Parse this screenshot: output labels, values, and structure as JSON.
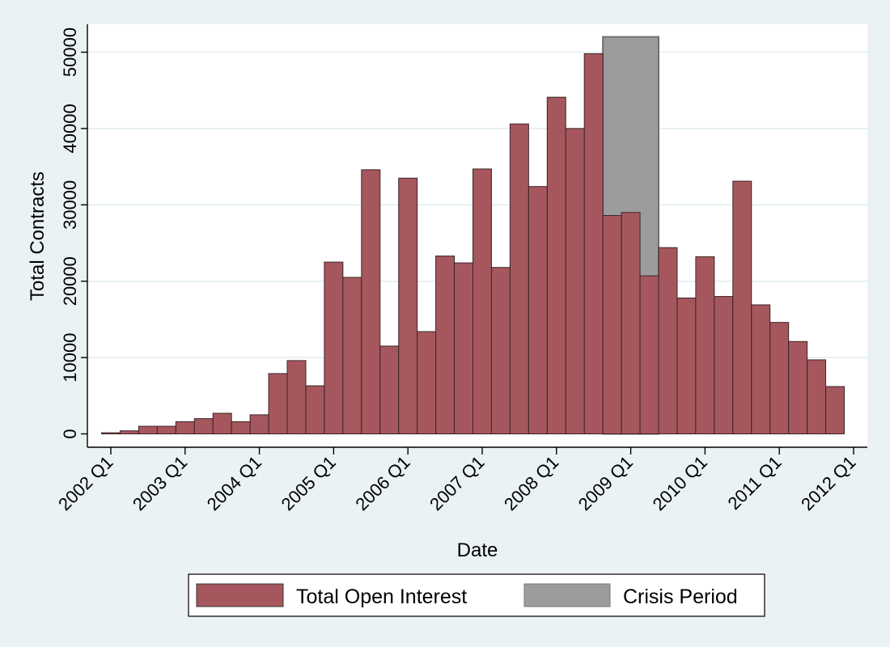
{
  "chart_data": {
    "type": "bar",
    "xlabel": "Date",
    "ylabel": "Total Contracts",
    "ylim": [
      0,
      54000
    ],
    "grid": true,
    "legend_position": "bottom",
    "y_ticks": [
      0,
      10000,
      20000,
      30000,
      40000,
      50000
    ],
    "y_tick_labels": [
      "0",
      "10000",
      "20000",
      "30000",
      "40000",
      "50000"
    ],
    "x_ticks": [
      "2002 Q1",
      "2003 Q1",
      "2004 Q1",
      "2005 Q1",
      "2006 Q1",
      "2007 Q1",
      "2008 Q1",
      "2009 Q1",
      "2010 Q1",
      "2011 Q1",
      "2012 Q1"
    ],
    "categories": [
      "2002 Q1",
      "2002 Q2",
      "2002 Q3",
      "2002 Q4",
      "2003 Q1",
      "2003 Q2",
      "2003 Q3",
      "2003 Q4",
      "2004 Q1",
      "2004 Q2",
      "2004 Q3",
      "2004 Q4",
      "2005 Q1",
      "2005 Q2",
      "2005 Q3",
      "2005 Q4",
      "2006 Q1",
      "2006 Q2",
      "2006 Q3",
      "2006 Q4",
      "2007 Q1",
      "2007 Q2",
      "2007 Q3",
      "2007 Q4",
      "2008 Q1",
      "2008 Q2",
      "2008 Q3",
      "2008 Q4",
      "2009 Q1",
      "2009 Q2",
      "2009 Q3",
      "2009 Q4",
      "2010 Q1",
      "2010 Q2",
      "2010 Q3",
      "2010 Q4",
      "2011 Q1",
      "2011 Q2",
      "2011 Q3",
      "2011 Q4"
    ],
    "series": [
      {
        "name": "Total Open Interest",
        "color": "#a6575e",
        "values": [
          150,
          400,
          1000,
          1000,
          1600,
          2000,
          2700,
          1600,
          2500,
          7900,
          9600,
          6300,
          22500,
          20500,
          34600,
          11500,
          33500,
          13400,
          23300,
          22400,
          34700,
          21800,
          40600,
          32400,
          44100,
          40000,
          49800,
          28600,
          29000,
          20700,
          24400,
          17800,
          23200,
          18000,
          33100,
          16900,
          14600,
          12100,
          9700,
          6200
        ]
      }
    ],
    "crisis_period": {
      "name": "Crisis Period",
      "color": "#9c9c9c",
      "start": "2008 Q4",
      "end": "2009 Q2",
      "value": 52000
    },
    "legend": [
      "Total Open Interest",
      "Crisis Period"
    ]
  }
}
